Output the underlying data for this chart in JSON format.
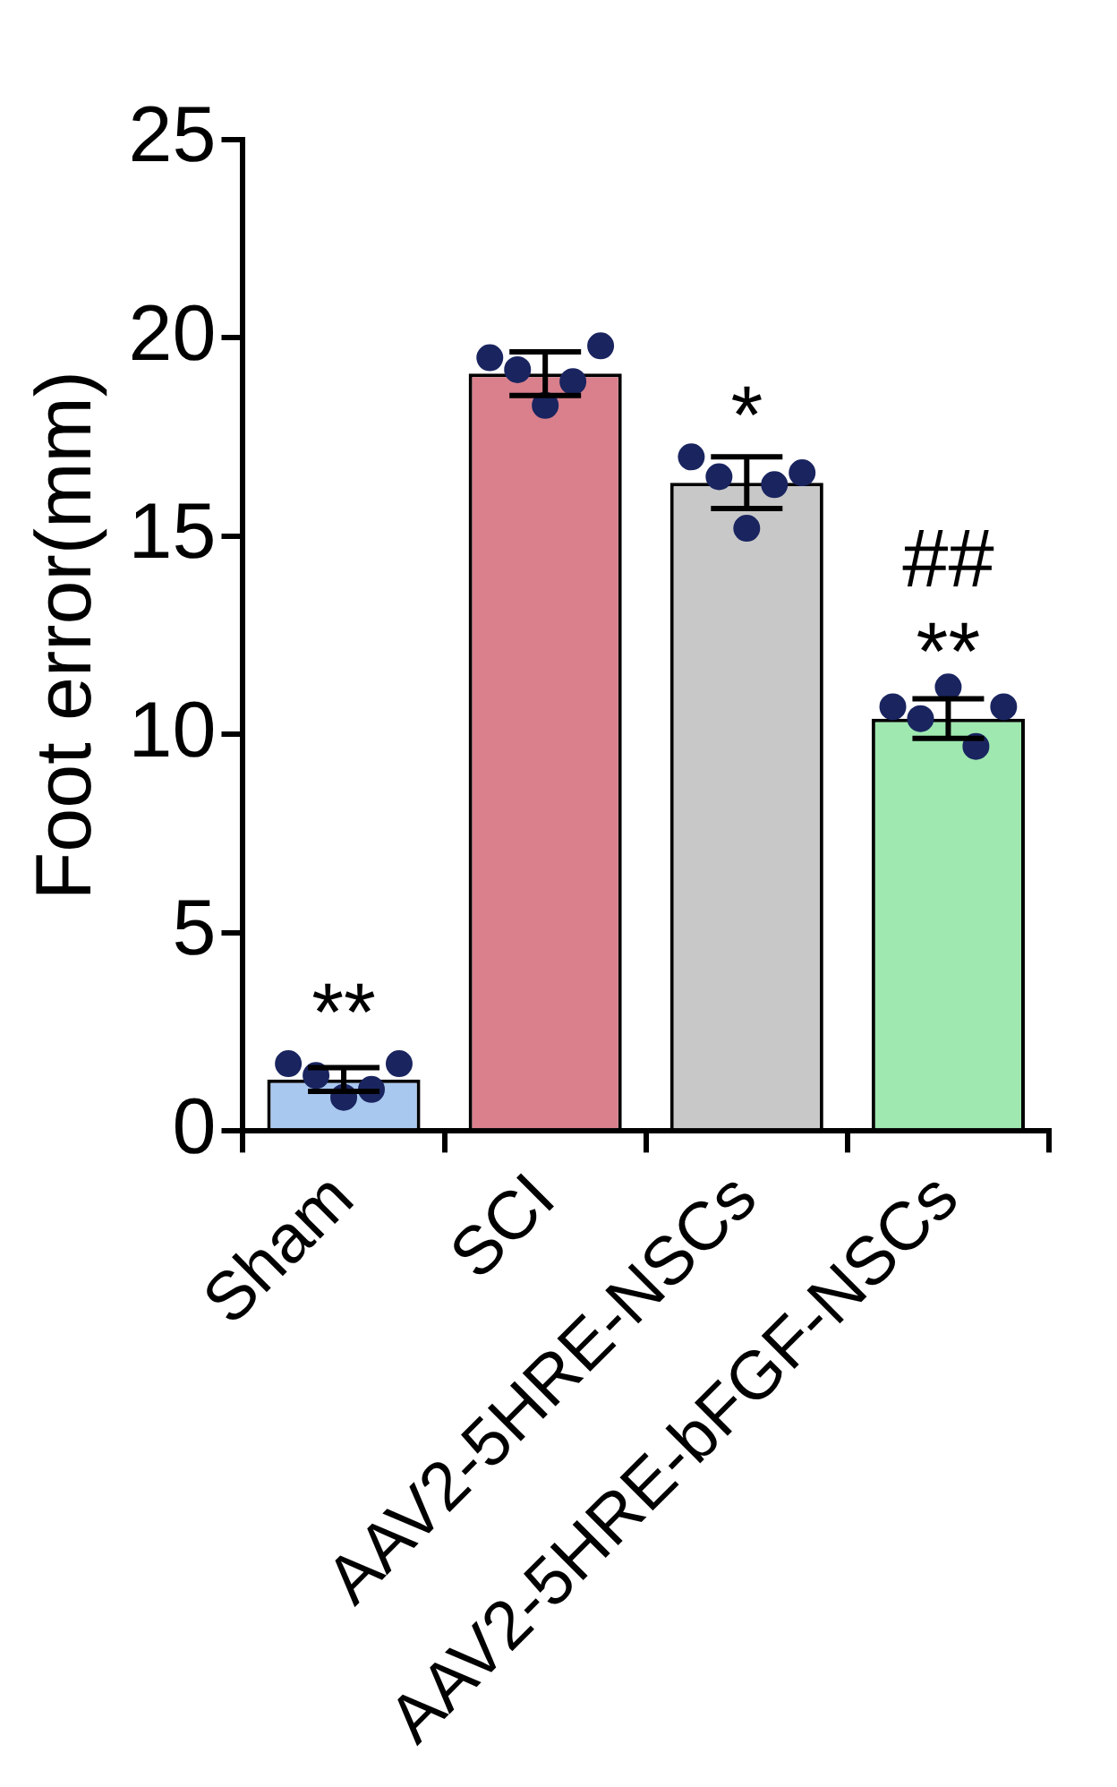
{
  "chart_data": {
    "type": "bar",
    "ylabel": "Foot error(mm)",
    "categories": [
      "Sham",
      "SCI",
      "AAV2-5HRE-NSCs",
      "AAV2-5HRE-bFGF-NSCs"
    ],
    "series": [
      {
        "values": [
          1.3,
          19.1,
          16.35,
          10.4
        ],
        "colors": [
          "#a9c8ef",
          "#d9808c",
          "#c8c8c8",
          "#9fe8b0"
        ],
        "errors": [
          0.3,
          0.55,
          0.65,
          0.5
        ]
      },
      {
        "type": "scatter",
        "color": "#1a2560",
        "x": [
          "Sham",
          "Sham",
          "Sham",
          "Sham",
          "Sham",
          "SCI",
          "SCI",
          "SCI",
          "SCI",
          "SCI",
          "AAV2-5HRE-NSCs",
          "AAV2-5HRE-NSCs",
          "AAV2-5HRE-NSCs",
          "AAV2-5HRE-NSCs",
          "AAV2-5HRE-NSCs",
          "AAV2-5HRE-bFGF-NSCs",
          "AAV2-5HRE-bFGF-NSCs",
          "AAV2-5HRE-bFGF-NSCs",
          "AAV2-5HRE-bFGF-NSCs",
          "AAV2-5HRE-bFGF-NSCs"
        ],
        "values": [
          1.7,
          1.4,
          0.85,
          1.05,
          1.7,
          19.5,
          19.2,
          18.3,
          18.9,
          19.8,
          17.0,
          16.5,
          15.2,
          16.3,
          16.6,
          10.7,
          10.4,
          11.2,
          9.7,
          10.7
        ]
      }
    ],
    "ylim": [
      0,
      25
    ],
    "yticks": [
      0,
      5,
      10,
      15,
      20,
      25
    ],
    "marker": "circle",
    "annotations": [
      {
        "text": "**",
        "x": "Sham",
        "y": 1.3
      },
      {
        "text": "*",
        "x": "AAV2-5HRE-NSCs",
        "y": 16.35
      },
      {
        "text": "**",
        "x": "AAV2-5HRE-bFGF-NSCs",
        "y": 10.4
      },
      {
        "text": "##",
        "x": "AAV2-5HRE-bFGF-NSCs",
        "y": 10.4
      }
    ]
  }
}
